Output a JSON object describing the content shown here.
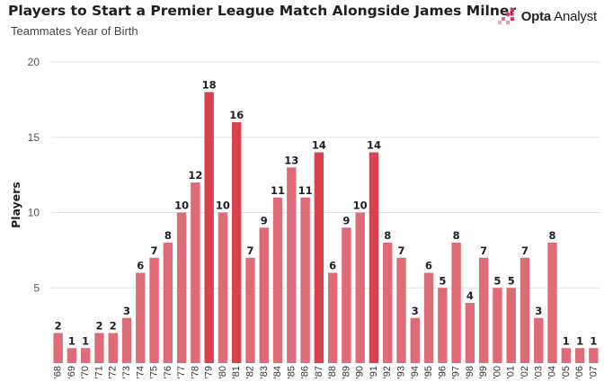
{
  "header": {
    "title": "Players to Start a Premier League Match Alongside James Milner",
    "subtitle": "Teammates Year of Birth"
  },
  "brand": {
    "name_bold": "Opta",
    "name_rest": " Analyst",
    "icon": "opta-dots-icon",
    "accent": "#e8305a"
  },
  "colors": {
    "bar": "#e06b78",
    "bar_highlight": "#d9414f",
    "grid": "#e4e4e4"
  },
  "chart_data": {
    "type": "bar",
    "title": "Players to Start a Premier League Match Alongside James Milner",
    "subtitle": "Teammates Year of Birth",
    "xlabel": "",
    "ylabel": "Players",
    "ylim": [
      0,
      20
    ],
    "yticks": [
      5,
      10,
      15,
      20
    ],
    "grid": true,
    "categories": [
      "'68",
      "'69",
      "'70",
      "'71",
      "'72",
      "'73",
      "'74",
      "'75",
      "'76",
      "'77",
      "'78",
      "'79",
      "'80",
      "'81",
      "'82",
      "'83",
      "'84",
      "'85",
      "'86",
      "'87",
      "'88",
      "'89",
      "'90",
      "'91",
      "'92",
      "'93",
      "'94",
      "'95",
      "'96",
      "'97",
      "'98",
      "'99",
      "'00",
      "'01",
      "'02",
      "'03",
      "'04",
      "'05",
      "'06",
      "'07"
    ],
    "values": [
      2,
      1,
      1,
      2,
      2,
      3,
      6,
      7,
      8,
      10,
      12,
      18,
      10,
      16,
      7,
      9,
      11,
      13,
      11,
      14,
      6,
      9,
      10,
      14,
      8,
      7,
      3,
      6,
      5,
      8,
      4,
      7,
      5,
      5,
      7,
      3,
      8,
      1,
      1,
      1
    ],
    "highlighted": [
      "'79",
      "'81",
      "'87",
      "'91"
    ]
  }
}
